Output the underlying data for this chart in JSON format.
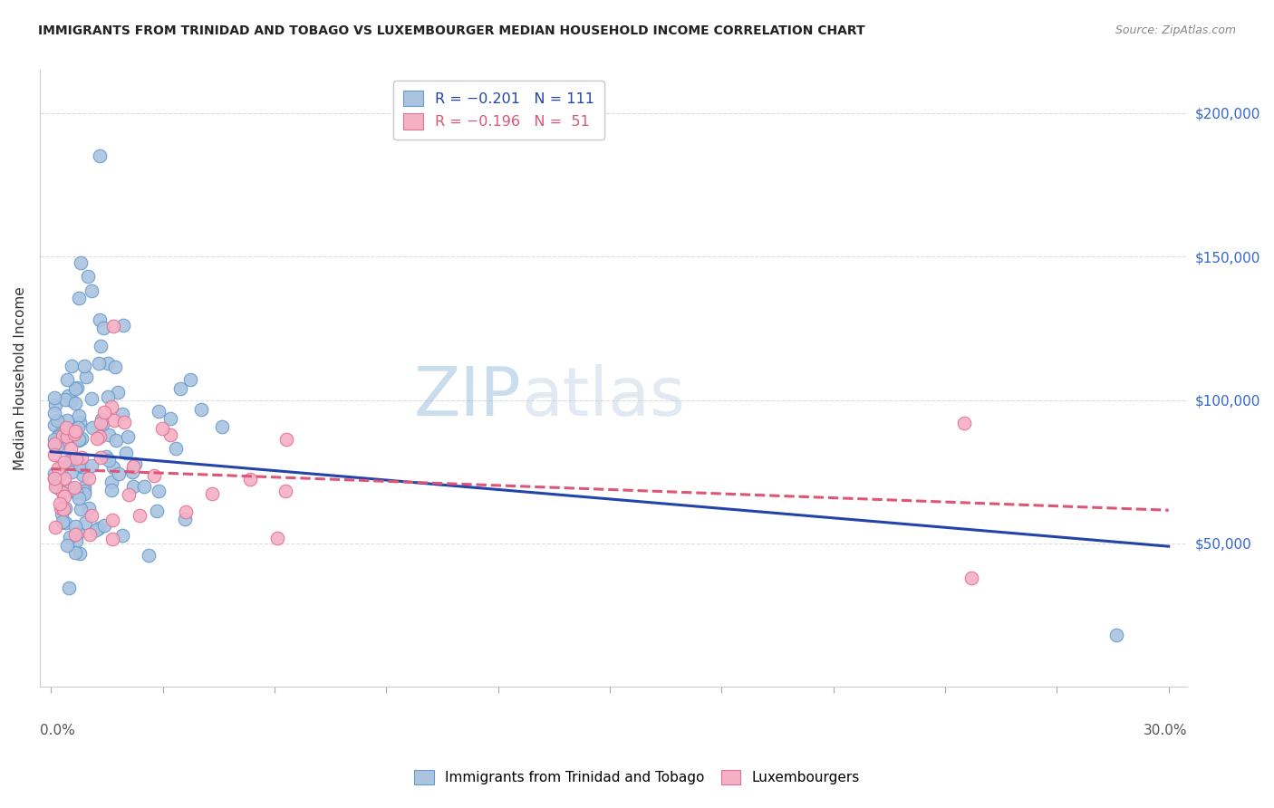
{
  "title": "IMMIGRANTS FROM TRINIDAD AND TOBAGO VS LUXEMBOURGER MEDIAN HOUSEHOLD INCOME CORRELATION CHART",
  "source": "Source: ZipAtlas.com",
  "ylabel": "Median Household Income",
  "ytick_labels": [
    "$50,000",
    "$100,000",
    "$150,000",
    "$200,000"
  ],
  "ytick_values": [
    50000,
    100000,
    150000,
    200000
  ],
  "xlim": [
    0.0,
    0.3
  ],
  "ylim": [
    0,
    215000
  ],
  "watermark": "ZIPatlas",
  "series1_color": "#aac4e0",
  "series1_edge": "#6699cc",
  "series2_color": "#f5b0c5",
  "series2_edge": "#e07090",
  "line1_color": "#2244aa",
  "line2_color": "#dd5577",
  "line1_intercept": 82000,
  "line1_slope": -110000,
  "line2_intercept": 76000,
  "line2_slope": -48000,
  "legend_label1": "R = −0.201   N = 111",
  "legend_label2": "R = −0.196   N =  51",
  "legend_label1_bottom": "Immigrants from Trinidad and Tobago",
  "legend_label2_bottom": "Luxembourgers"
}
